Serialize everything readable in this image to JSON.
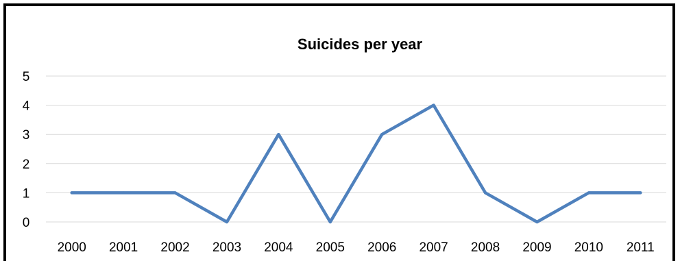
{
  "chart_data": {
    "type": "line",
    "title": "Suicides per year",
    "xlabel": "",
    "ylabel": "",
    "categories": [
      "2000",
      "2001",
      "2002",
      "2003",
      "2004",
      "2005",
      "2006",
      "2007",
      "2008",
      "2009",
      "2010",
      "2011"
    ],
    "series": [
      {
        "values": [
          1,
          1,
          1,
          0,
          3,
          0,
          3,
          4,
          1,
          0,
          1,
          1
        ],
        "color": "#4f81bd"
      }
    ],
    "ylim": [
      0,
      5
    ],
    "yticks": [
      "0",
      "1",
      "2",
      "3",
      "4",
      "5"
    ],
    "grid": true,
    "legend": "none"
  }
}
